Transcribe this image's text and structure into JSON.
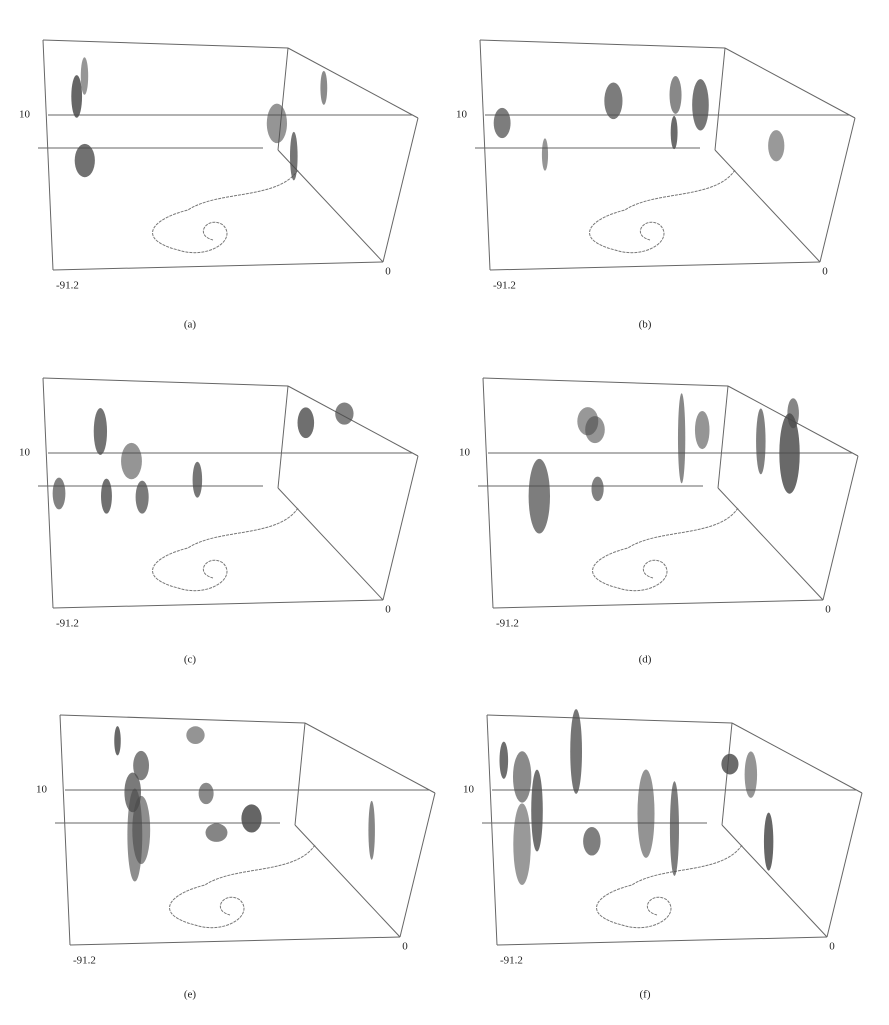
{
  "panels": [
    {
      "caption": "(a)",
      "level_label": "10",
      "origin_label": "-91.2",
      "corner_label": "0"
    },
    {
      "caption": "(b)",
      "level_label": "10",
      "origin_label": "-91.2",
      "corner_label": "0"
    },
    {
      "caption": "(c)",
      "level_label": "10",
      "origin_label": "-91.2",
      "corner_label": "0"
    },
    {
      "caption": "(d)",
      "level_label": "10",
      "origin_label": "-91.2",
      "corner_label": "0"
    },
    {
      "caption": "(e)",
      "level_label": "10",
      "origin_label": "-91.2",
      "corner_label": "0"
    },
    {
      "caption": "(f)",
      "level_label": "10",
      "origin_label": "-91.2",
      "corner_label": "0"
    }
  ]
}
